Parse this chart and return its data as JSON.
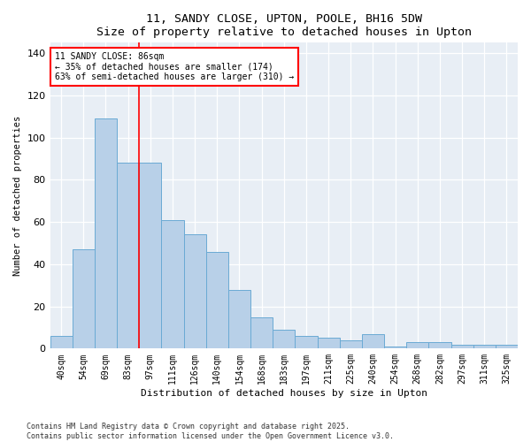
{
  "title": "11, SANDY CLOSE, UPTON, POOLE, BH16 5DW",
  "subtitle": "Size of property relative to detached houses in Upton",
  "xlabel": "Distribution of detached houses by size in Upton",
  "ylabel": "Number of detached properties",
  "categories": [
    "40sqm",
    "54sqm",
    "69sqm",
    "83sqm",
    "97sqm",
    "111sqm",
    "126sqm",
    "140sqm",
    "154sqm",
    "168sqm",
    "183sqm",
    "197sqm",
    "211sqm",
    "225sqm",
    "240sqm",
    "254sqm",
    "268sqm",
    "282sqm",
    "297sqm",
    "311sqm",
    "325sqm"
  ],
  "bar_values": [
    6,
    47,
    109,
    88,
    88,
    61,
    54,
    46,
    28,
    15,
    9,
    6,
    5,
    4,
    7,
    1,
    3,
    3,
    2,
    2,
    2
  ],
  "bar_color": "#b8d0e8",
  "bar_edge_color": "#6aaad4",
  "red_line_index": 3.5,
  "annotation_title": "11 SANDY CLOSE: 86sqm",
  "annotation_line1": "← 35% of detached houses are smaller (174)",
  "annotation_line2": "63% of semi-detached houses are larger (310) →",
  "ylim": [
    0,
    145
  ],
  "yticks": [
    0,
    20,
    40,
    60,
    80,
    100,
    120,
    140
  ],
  "bg_color": "#e8eef5",
  "footer1": "Contains HM Land Registry data © Crown copyright and database right 2025.",
  "footer2": "Contains public sector information licensed under the Open Government Licence v3.0."
}
